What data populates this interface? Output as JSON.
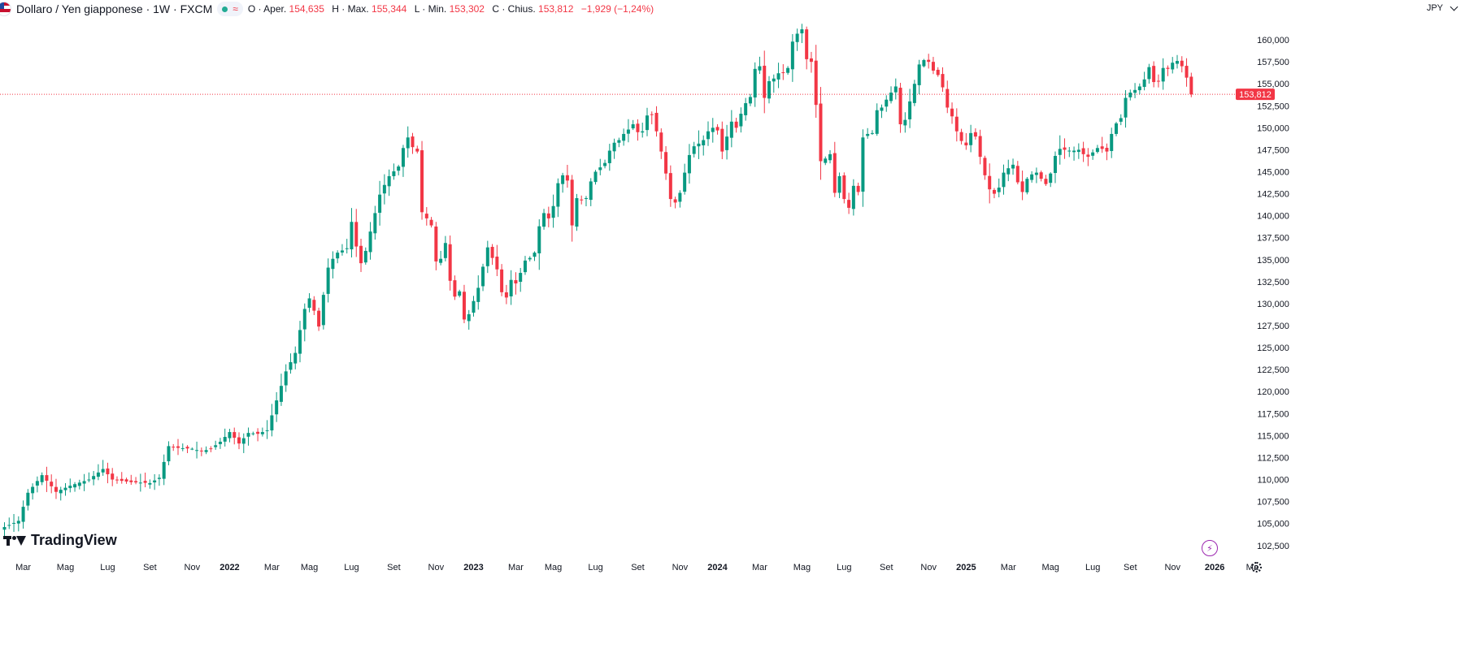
{
  "header": {
    "title": "Dollaro / Yen giapponese · 1W · FXCM",
    "flag_icon": "usd-jpy-flag-icon",
    "status_icon": "market-open-dot-icon",
    "eq_symbol": "≈",
    "open_label": "O · Aper.",
    "open_value": "154,635",
    "high_label": "H · Max.",
    "high_value": "155,344",
    "low_label": "L · Min.",
    "low_value": "153,302",
    "close_label": "C · Chius.",
    "close_value": "153,812",
    "change_value": "−1,929 (−1,24%)"
  },
  "currency_button": {
    "label": "JPY"
  },
  "brand": {
    "logo_text": "TradingView"
  },
  "colors": {
    "up": "#089981",
    "down": "#f23645",
    "axis_text": "#131722",
    "price_line": "#f23645"
  },
  "chart_data": {
    "type": "candlestick",
    "title": "Dollaro / Yen giapponese · 1W · FXCM",
    "timeframe": "1W",
    "currency": "JPY",
    "last_price": 153.812,
    "last_price_label": "153,812",
    "ylim": [
      101.0,
      162.5
    ],
    "y_ticks": [
      102.5,
      105,
      107.5,
      110,
      112.5,
      115,
      117.5,
      120,
      122.5,
      125,
      127.5,
      130,
      132.5,
      135,
      137.5,
      140,
      142.5,
      145,
      147.5,
      150,
      152.5,
      155,
      157.5,
      160
    ],
    "y_tick_labels": [
      "102,500",
      "105,000",
      "107,500",
      "110,000",
      "112,500",
      "115,000",
      "117,500",
      "120,000",
      "122,500",
      "125,000",
      "127,500",
      "130,000",
      "132,500",
      "135,000",
      "137,500",
      "140,000",
      "142,500",
      "145,000",
      "147,500",
      "150,000",
      "152,500",
      "155,000",
      "157,500",
      "160,000"
    ],
    "x_labels": [
      {
        "label": "Mar",
        "week": 4
      },
      {
        "label": "Mag",
        "week": 13
      },
      {
        "label": "Lug",
        "week": 22
      },
      {
        "label": "Set",
        "week": 31
      },
      {
        "label": "Nov",
        "week": 40
      },
      {
        "label": "2022",
        "week": 48
      },
      {
        "label": "Mar",
        "week": 57
      },
      {
        "label": "Mag",
        "week": 65
      },
      {
        "label": "Lug",
        "week": 74
      },
      {
        "label": "Set",
        "week": 83
      },
      {
        "label": "Nov",
        "week": 92
      },
      {
        "label": "2023",
        "week": 100
      },
      {
        "label": "Mar",
        "week": 109
      },
      {
        "label": "Mag",
        "week": 117
      },
      {
        "label": "Lug",
        "week": 126
      },
      {
        "label": "Set",
        "week": 135
      },
      {
        "label": "Nov",
        "week": 144
      },
      {
        "label": "2024",
        "week": 152
      },
      {
        "label": "Mar",
        "week": 161
      },
      {
        "label": "Mag",
        "week": 170
      },
      {
        "label": "Lug",
        "week": 179
      },
      {
        "label": "Set",
        "week": 188
      },
      {
        "label": "Nov",
        "week": 197
      },
      {
        "label": "2025",
        "week": 205
      },
      {
        "label": "Mar",
        "week": 214
      },
      {
        "label": "Mag",
        "week": 223
      },
      {
        "label": "Lug",
        "week": 232
      },
      {
        "label": "Set",
        "week": 240
      },
      {
        "label": "Nov",
        "week": 249
      },
      {
        "label": "2026",
        "week": 258
      },
      {
        "label": "Ma",
        "week": 266
      }
    ],
    "weeks_total": 268,
    "close_waypoints": [
      [
        0,
        104.6
      ],
      [
        3,
        105.3
      ],
      [
        5,
        108.5
      ],
      [
        8,
        110.5
      ],
      [
        11,
        108.6
      ],
      [
        14,
        109.3
      ],
      [
        18,
        110.0
      ],
      [
        21,
        111.2
      ],
      [
        23,
        110.0
      ],
      [
        27,
        109.7
      ],
      [
        31,
        109.6
      ],
      [
        33,
        110.2
      ],
      [
        35,
        113.8
      ],
      [
        37,
        113.6
      ],
      [
        40,
        113.5
      ],
      [
        42,
        113.2
      ],
      [
        44,
        113.5
      ],
      [
        46,
        114.3
      ],
      [
        48,
        115.4
      ],
      [
        50,
        114.1
      ],
      [
        52,
        115.3
      ],
      [
        54,
        115.2
      ],
      [
        56,
        115.6
      ],
      [
        58,
        119.0
      ],
      [
        60,
        122.3
      ],
      [
        62,
        124.4
      ],
      [
        63,
        127.0
      ],
      [
        64,
        129.4
      ],
      [
        65,
        130.6
      ],
      [
        66,
        129.2
      ],
      [
        67,
        127.4
      ],
      [
        68,
        131.0
      ],
      [
        69,
        134.1
      ],
      [
        70,
        135.1
      ],
      [
        71,
        135.8
      ],
      [
        73,
        136.3
      ],
      [
        74,
        139.3
      ],
      [
        75,
        136.5
      ],
      [
        76,
        134.6
      ],
      [
        77,
        136.0
      ],
      [
        78,
        138.2
      ],
      [
        80,
        142.4
      ],
      [
        81,
        143.5
      ],
      [
        82,
        144.5
      ],
      [
        84,
        145.6
      ],
      [
        85,
        147.7
      ],
      [
        86,
        148.9
      ],
      [
        87,
        147.8
      ],
      [
        88,
        147.3
      ],
      [
        89,
        140.4
      ],
      [
        90,
        139.7
      ],
      [
        91,
        138.9
      ],
      [
        92,
        134.8
      ],
      [
        93,
        135.1
      ],
      [
        94,
        136.9
      ],
      [
        95,
        132.6
      ],
      [
        96,
        130.8
      ],
      [
        97,
        131.4
      ],
      [
        98,
        128.2
      ],
      [
        99,
        128.8
      ],
      [
        100,
        130.3
      ],
      [
        101,
        131.8
      ],
      [
        102,
        134.2
      ],
      [
        103,
        136.4
      ],
      [
        104,
        135.2
      ],
      [
        105,
        133.9
      ],
      [
        106,
        131.3
      ],
      [
        107,
        130.7
      ],
      [
        108,
        132.7
      ],
      [
        109,
        132.3
      ],
      [
        110,
        133.5
      ],
      [
        111,
        134.9
      ],
      [
        112,
        135.2
      ],
      [
        113,
        135.8
      ],
      [
        114,
        138.8
      ],
      [
        115,
        140.3
      ],
      [
        116,
        139.7
      ],
      [
        117,
        141.1
      ],
      [
        118,
        143.7
      ],
      [
        119,
        144.6
      ],
      [
        120,
        144.0
      ],
      [
        121,
        138.9
      ],
      [
        122,
        142.0
      ],
      [
        123,
        141.8
      ],
      [
        124,
        142.0
      ],
      [
        125,
        143.9
      ],
      [
        126,
        145.0
      ],
      [
        127,
        145.5
      ],
      [
        128,
        146.0
      ],
      [
        129,
        147.4
      ],
      [
        130,
        148.3
      ],
      [
        131,
        148.6
      ],
      [
        132,
        149.3
      ],
      [
        133,
        149.8
      ],
      [
        134,
        150.4
      ],
      [
        135,
        149.5
      ],
      [
        136,
        149.6
      ],
      [
        137,
        151.4
      ],
      [
        138,
        151.5
      ],
      [
        139,
        149.6
      ],
      [
        140,
        147.3
      ],
      [
        141,
        144.8
      ],
      [
        142,
        141.9
      ],
      [
        143,
        141.5
      ],
      [
        144,
        142.6
      ],
      [
        145,
        144.9
      ],
      [
        146,
        146.9
      ],
      [
        147,
        147.9
      ],
      [
        148,
        148.2
      ],
      [
        149,
        148.6
      ],
      [
        150,
        149.6
      ],
      [
        151,
        150.0
      ],
      [
        152,
        149.7
      ],
      [
        153,
        147.3
      ],
      [
        154,
        149.0
      ],
      [
        155,
        150.7
      ],
      [
        156,
        150.0
      ],
      [
        157,
        151.6
      ],
      [
        158,
        152.8
      ],
      [
        159,
        153.5
      ],
      [
        160,
        156.7
      ],
      [
        161,
        157.0
      ],
      [
        162,
        153.4
      ],
      [
        163,
        155.3
      ],
      [
        164,
        155.6
      ],
      [
        165,
        156.2
      ],
      [
        166,
        156.3
      ],
      [
        167,
        156.8
      ],
      [
        168,
        159.8
      ],
      [
        169,
        160.7
      ],
      [
        170,
        161.2
      ],
      [
        171,
        157.8
      ],
      [
        172,
        157.5
      ],
      [
        173,
        152.6
      ],
      [
        174,
        146.2
      ],
      [
        175,
        146.5
      ],
      [
        176,
        147.0
      ],
      [
        177,
        142.6
      ],
      [
        178,
        144.5
      ],
      [
        179,
        141.9
      ],
      [
        180,
        140.9
      ],
      [
        181,
        143.4
      ],
      [
        182,
        142.7
      ],
      [
        183,
        148.9
      ],
      [
        184,
        149.3
      ],
      [
        185,
        149.4
      ],
      [
        186,
        152.0
      ],
      [
        187,
        152.3
      ],
      [
        188,
        153.2
      ],
      [
        189,
        154.0
      ],
      [
        190,
        154.7
      ],
      [
        191,
        150.4
      ],
      [
        192,
        150.9
      ],
      [
        193,
        153.0
      ],
      [
        194,
        155.0
      ],
      [
        195,
        157.2
      ],
      [
        196,
        157.7
      ],
      [
        197,
        157.5
      ],
      [
        198,
        156.5
      ],
      [
        199,
        156.0
      ],
      [
        200,
        154.6
      ],
      [
        201,
        152.3
      ],
      [
        202,
        151.3
      ],
      [
        203,
        149.6
      ],
      [
        204,
        148.5
      ],
      [
        205,
        148.0
      ],
      [
        206,
        149.4
      ],
      [
        207,
        149.0
      ],
      [
        208,
        146.7
      ],
      [
        209,
        144.6
      ],
      [
        210,
        143.0
      ],
      [
        211,
        142.5
      ],
      [
        212,
        143.2
      ],
      [
        213,
        144.9
      ],
      [
        214,
        145.4
      ],
      [
        215,
        145.8
      ],
      [
        216,
        143.8
      ],
      [
        217,
        142.7
      ],
      [
        218,
        144.2
      ],
      [
        219,
        144.7
      ],
      [
        220,
        144.9
      ],
      [
        221,
        144.2
      ],
      [
        222,
        143.6
      ],
      [
        223,
        144.8
      ],
      [
        224,
        146.8
      ],
      [
        225,
        147.6
      ],
      [
        226,
        147.5
      ],
      [
        227,
        147.4
      ],
      [
        228,
        147.4
      ],
      [
        229,
        147.5
      ],
      [
        230,
        147.0
      ],
      [
        231,
        146.7
      ],
      [
        232,
        147.2
      ],
      [
        233,
        147.7
      ],
      [
        234,
        147.6
      ],
      [
        235,
        147.3
      ],
      [
        236,
        149.3
      ],
      [
        237,
        150.5
      ],
      [
        238,
        151.1
      ],
      [
        239,
        153.4
      ],
      [
        240,
        154.0
      ],
      [
        241,
        154.3
      ],
      [
        242,
        154.7
      ],
      [
        243,
        155.5
      ],
      [
        244,
        156.9
      ],
      [
        245,
        155.2
      ],
      [
        246,
        155.3
      ],
      [
        247,
        156.8
      ],
      [
        248,
        156.7
      ],
      [
        249,
        157.4
      ],
      [
        250,
        157.6
      ],
      [
        251,
        157.0
      ],
      [
        252,
        155.7
      ],
      [
        253,
        153.8
      ]
    ]
  }
}
